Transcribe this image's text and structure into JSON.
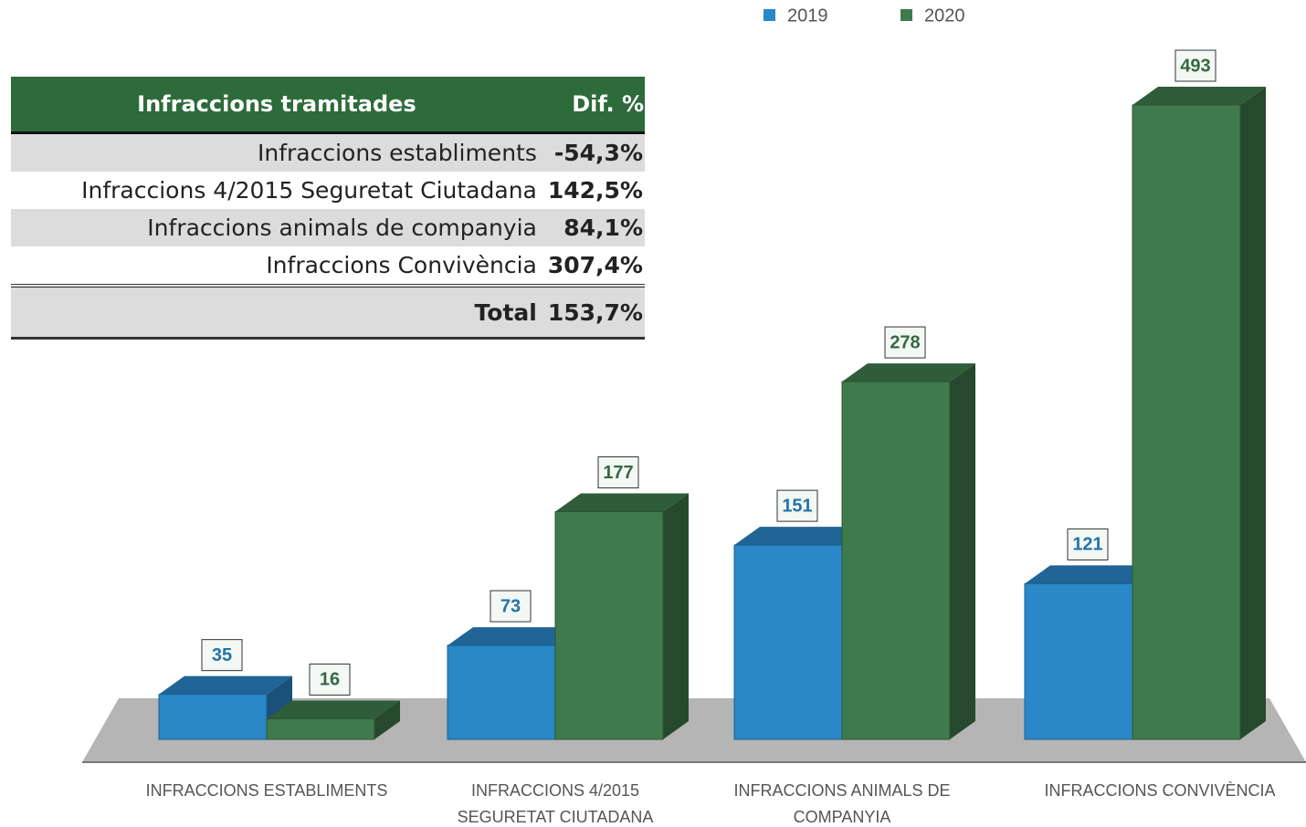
{
  "chart_data": {
    "type": "bar3d",
    "categories": [
      "INFRACCIONS ESTABLIMENTS",
      "INFRACCIONS 4/2015 SEGURETAT CIUTADANA",
      "INFRACCIONS ANIMALS DE COMPANYIA",
      "INFRACCIONS CONVIVÈNCIA"
    ],
    "series": [
      {
        "name": "2019",
        "color": "#2a87c8",
        "values": [
          35,
          73,
          151,
          121
        ]
      },
      {
        "name": "2020",
        "color": "#3f7a4c",
        "values": [
          16,
          177,
          278,
          493
        ]
      }
    ],
    "legend": "top"
  },
  "table": {
    "header": [
      "Infraccions tramitades",
      "Dif. %"
    ],
    "rows": [
      [
        "Infraccions establiments",
        "-54,3%"
      ],
      [
        "Infraccions 4/2015 Seguretat Ciutadana",
        "142,5%"
      ],
      [
        "Infraccions animals de companyia",
        "84,1%"
      ],
      [
        "Infraccions Convivència",
        "307,4%"
      ]
    ],
    "total": [
      "Total",
      "153,7%"
    ]
  }
}
